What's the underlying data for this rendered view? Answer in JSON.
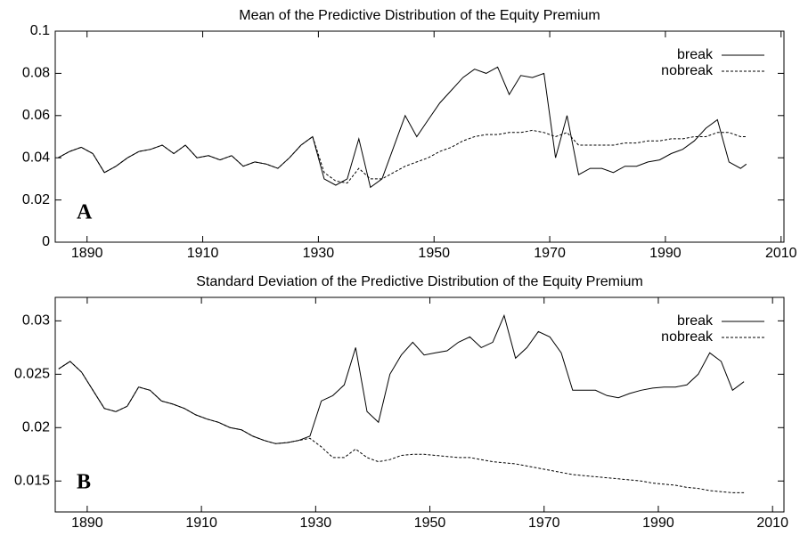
{
  "chart_data": [
    {
      "type": "line",
      "title": "Mean of the Predictive Distribution of the Equity Premium",
      "annotation": "A",
      "x": [
        1885,
        1887,
        1889,
        1891,
        1893,
        1895,
        1897,
        1899,
        1901,
        1903,
        1905,
        1907,
        1909,
        1911,
        1913,
        1915,
        1917,
        1919,
        1921,
        1923,
        1925,
        1927,
        1929,
        1931,
        1933,
        1935,
        1937,
        1939,
        1941,
        1943,
        1945,
        1947,
        1949,
        1951,
        1953,
        1955,
        1957,
        1959,
        1961,
        1963,
        1965,
        1967,
        1969,
        1971,
        1973,
        1975,
        1977,
        1979,
        1981,
        1983,
        1985,
        1987,
        1989,
        1991,
        1993,
        1995,
        1997,
        1999,
        2001,
        2003,
        2004
      ],
      "series": [
        {
          "name": "break",
          "color": "#000000",
          "style": "solid",
          "values": [
            0.04,
            0.043,
            0.045,
            0.042,
            0.033,
            0.036,
            0.04,
            0.043,
            0.044,
            0.046,
            0.042,
            0.046,
            0.04,
            0.041,
            0.039,
            0.041,
            0.036,
            0.038,
            0.037,
            0.035,
            0.04,
            0.046,
            0.05,
            0.03,
            0.027,
            0.03,
            0.049,
            0.026,
            0.03,
            0.045,
            0.06,
            0.05,
            0.058,
            0.066,
            0.072,
            0.078,
            0.082,
            0.08,
            0.083,
            0.07,
            0.079,
            0.078,
            0.08,
            0.04,
            0.06,
            0.032,
            0.035,
            0.035,
            0.033,
            0.036,
            0.036,
            0.038,
            0.039,
            0.042,
            0.044,
            0.048,
            0.054,
            0.058,
            0.038,
            0.035,
            0.037
          ]
        },
        {
          "name": "nobreak",
          "color": "#000000",
          "style": "dashed",
          "values": [
            0.04,
            0.043,
            0.045,
            0.042,
            0.033,
            0.036,
            0.04,
            0.043,
            0.044,
            0.046,
            0.042,
            0.046,
            0.04,
            0.041,
            0.039,
            0.041,
            0.036,
            0.038,
            0.037,
            0.035,
            0.04,
            0.046,
            0.05,
            0.033,
            0.029,
            0.028,
            0.035,
            0.03,
            0.03,
            0.033,
            0.036,
            0.038,
            0.04,
            0.043,
            0.045,
            0.048,
            0.05,
            0.051,
            0.051,
            0.052,
            0.052,
            0.053,
            0.052,
            0.05,
            0.052,
            0.046,
            0.046,
            0.046,
            0.046,
            0.047,
            0.047,
            0.048,
            0.048,
            0.049,
            0.049,
            0.05,
            0.05,
            0.052,
            0.052,
            0.05,
            0.05
          ]
        }
      ],
      "xlim": [
        1884.5,
        2010.5
      ],
      "xticks": [
        1890,
        1910,
        1930,
        1950,
        1970,
        1990,
        2010
      ],
      "ylim": [
        0,
        0.1
      ],
      "yticks": [
        0,
        0.02,
        0.04,
        0.06,
        0.08,
        0.1
      ],
      "legend": "upper right"
    },
    {
      "type": "line",
      "title": "Standard Deviation of the Predictive Distribution of the Equity Premium",
      "annotation": "B",
      "x": [
        1885,
        1887,
        1889,
        1891,
        1893,
        1895,
        1897,
        1899,
        1901,
        1903,
        1905,
        1907,
        1909,
        1911,
        1913,
        1915,
        1917,
        1919,
        1921,
        1923,
        1925,
        1927,
        1929,
        1931,
        1933,
        1935,
        1937,
        1939,
        1941,
        1943,
        1945,
        1947,
        1949,
        1951,
        1953,
        1955,
        1957,
        1959,
        1961,
        1963,
        1965,
        1967,
        1969,
        1971,
        1973,
        1975,
        1977,
        1979,
        1981,
        1983,
        1985,
        1987,
        1989,
        1991,
        1993,
        1995,
        1997,
        1999,
        2001,
        2003,
        2005
      ],
      "series": [
        {
          "name": "break",
          "color": "#000000",
          "style": "solid",
          "values": [
            0.0255,
            0.0262,
            0.0252,
            0.0235,
            0.0218,
            0.0215,
            0.022,
            0.0238,
            0.0235,
            0.0225,
            0.0222,
            0.0218,
            0.0212,
            0.0208,
            0.0205,
            0.02,
            0.0198,
            0.0192,
            0.0188,
            0.0185,
            0.0186,
            0.0188,
            0.0192,
            0.0225,
            0.023,
            0.024,
            0.0275,
            0.0215,
            0.0205,
            0.025,
            0.0268,
            0.028,
            0.0268,
            0.027,
            0.0272,
            0.028,
            0.0285,
            0.0275,
            0.028,
            0.0305,
            0.0265,
            0.0275,
            0.029,
            0.0285,
            0.027,
            0.0235,
            0.0235,
            0.0235,
            0.023,
            0.0228,
            0.0232,
            0.0235,
            0.0237,
            0.0238,
            0.0238,
            0.024,
            0.025,
            0.027,
            0.0262,
            0.0235,
            0.0243
          ]
        },
        {
          "name": "nobreak",
          "color": "#000000",
          "style": "dashed",
          "values": [
            0.0255,
            0.0262,
            0.0252,
            0.0235,
            0.0218,
            0.0215,
            0.022,
            0.0238,
            0.0235,
            0.0225,
            0.0222,
            0.0218,
            0.0212,
            0.0208,
            0.0205,
            0.02,
            0.0198,
            0.0192,
            0.0188,
            0.0185,
            0.0186,
            0.0188,
            0.019,
            0.0182,
            0.0172,
            0.0172,
            0.018,
            0.0172,
            0.0168,
            0.017,
            0.0174,
            0.0175,
            0.0175,
            0.0174,
            0.0173,
            0.0172,
            0.0172,
            0.017,
            0.0168,
            0.0167,
            0.0166,
            0.0164,
            0.0162,
            0.016,
            0.0158,
            0.0156,
            0.0155,
            0.0154,
            0.0153,
            0.0152,
            0.0151,
            0.015,
            0.0148,
            0.0147,
            0.0146,
            0.0144,
            0.0143,
            0.0141,
            0.014,
            0.0139,
            0.0139
          ]
        }
      ],
      "xlim": [
        1884.4,
        2012
      ],
      "xticks": [
        1890,
        1910,
        1930,
        1950,
        1970,
        1990,
        2010
      ],
      "ylim": [
        0.0121,
        0.0322
      ],
      "yticks": [
        0.015,
        0.02,
        0.025,
        0.03
      ],
      "legend": "upper right"
    }
  ]
}
